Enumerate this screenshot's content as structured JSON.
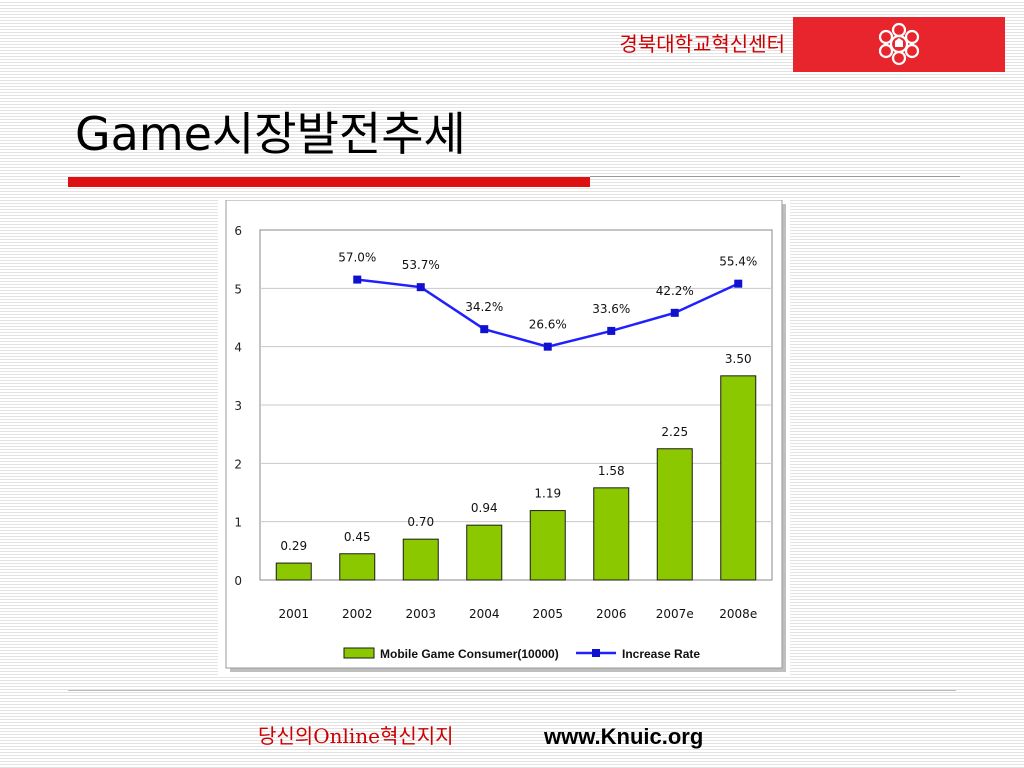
{
  "header": {
    "org_name": "경북대학교혁신센터",
    "logo_icon": "university-emblem-icon",
    "brand_color": "#e8242d"
  },
  "slide": {
    "title": "Game시장발전추세"
  },
  "chart_data": {
    "type": "bar",
    "categories": [
      "2001",
      "2002",
      "2003",
      "2004",
      "2005",
      "2006",
      "2007e",
      "2008e"
    ],
    "ylim": [
      0,
      6
    ],
    "yticks": [
      "0",
      "1",
      "2",
      "3",
      "4",
      "5",
      "6"
    ],
    "grid": true,
    "legend_position": "bottom",
    "series": [
      {
        "name": "Mobile Game Consumer(10000)",
        "type": "bar",
        "color": "#8cc800",
        "values": [
          0.29,
          0.45,
          0.7,
          0.94,
          1.19,
          1.58,
          2.25,
          3.5
        ],
        "labels": [
          "0.29",
          "0.45",
          "0.70",
          "0.94",
          "1.19",
          "1.58",
          "2.25",
          "3.50"
        ]
      },
      {
        "name": "Increase  Rate",
        "type": "line",
        "color": "#2020ff",
        "plot_positions": [
          null,
          5.15,
          5.02,
          4.3,
          4.0,
          4.27,
          4.58,
          5.08
        ],
        "values_percent": [
          null,
          57.0,
          53.7,
          34.2,
          26.6,
          33.6,
          42.2,
          55.4
        ],
        "labels": [
          "",
          "57.0%",
          "53.7%",
          "34.2%",
          "26.6%",
          "33.6%",
          "42.2%",
          "55.4%"
        ]
      }
    ]
  },
  "footer": {
    "slogan": "당신의Online혁신지지",
    "url": "www.Knuic.org"
  }
}
